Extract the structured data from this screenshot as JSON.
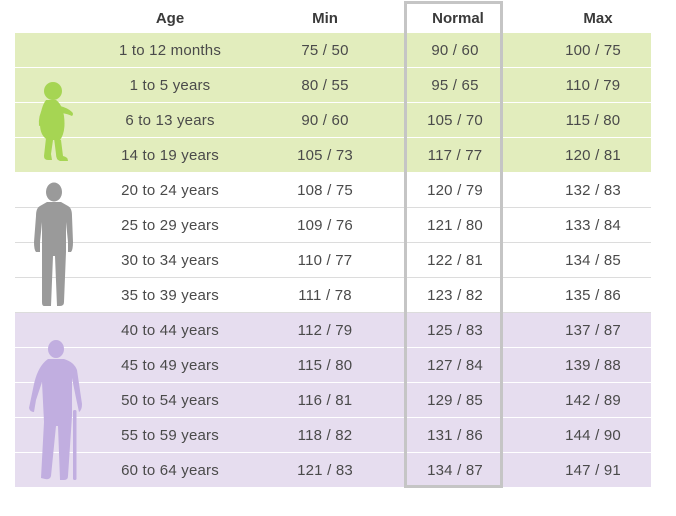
{
  "header": {
    "age": "Age",
    "min": "Min",
    "normal": "Normal",
    "max": "Max"
  },
  "colors": {
    "child": "#e2edbd",
    "adult": "#ffffff",
    "senior": "#e6ddef",
    "child_figure": "#a6d553",
    "adult_figure": "#9a9a9a",
    "senior_figure": "#c1aee0",
    "highlight_border": "#c5c5c5"
  },
  "icons": {
    "child": "toddler-icon",
    "adult": "man-icon",
    "senior": "elderly-man-with-cane-icon"
  },
  "rows": [
    {
      "age": "1 to 12 months",
      "min": "75 / 50",
      "normal": "90 / 60",
      "max": "100 / 75",
      "group": "child"
    },
    {
      "age": "1 to 5 years",
      "min": "80 / 55",
      "normal": "95 / 65",
      "max": "110 / 79",
      "group": "child"
    },
    {
      "age": "6 to 13 years",
      "min": "90 / 60",
      "normal": "105 / 70",
      "max": "115 / 80",
      "group": "child"
    },
    {
      "age": "14 to 19 years",
      "min": "105 / 73",
      "normal": "117 / 77",
      "max": "120 / 81",
      "group": "child"
    },
    {
      "age": "20 to 24 years",
      "min": "108 / 75",
      "normal": "120 / 79",
      "max": "132 / 83",
      "group": "adult"
    },
    {
      "age": "25 to 29 years",
      "min": "109 / 76",
      "normal": "121 / 80",
      "max": "133 / 84",
      "group": "adult"
    },
    {
      "age": "30 to 34 years",
      "min": "110 / 77",
      "normal": "122 / 81",
      "max": "134 / 85",
      "group": "adult"
    },
    {
      "age": "35 to 39 years",
      "min": "111 / 78",
      "normal": "123 / 82",
      "max": "135 / 86",
      "group": "adult"
    },
    {
      "age": "40 to 44 years",
      "min": "112 / 79",
      "normal": "125 / 83",
      "max": "137 / 87",
      "group": "senior"
    },
    {
      "age": "45 to 49 years",
      "min": "115 / 80",
      "normal": "127 / 84",
      "max": "139 / 88",
      "group": "senior"
    },
    {
      "age": "50 to 54 years",
      "min": "116 / 81",
      "normal": "129 / 85",
      "max": "142 / 89",
      "group": "senior"
    },
    {
      "age": "55 to 59 years",
      "min": "118 / 82",
      "normal": "131 / 86",
      "max": "144 / 90",
      "group": "senior"
    },
    {
      "age": "60 to 64 years",
      "min": "121 / 83",
      "normal": "134 / 87",
      "max": "147 / 91",
      "group": "senior"
    }
  ]
}
